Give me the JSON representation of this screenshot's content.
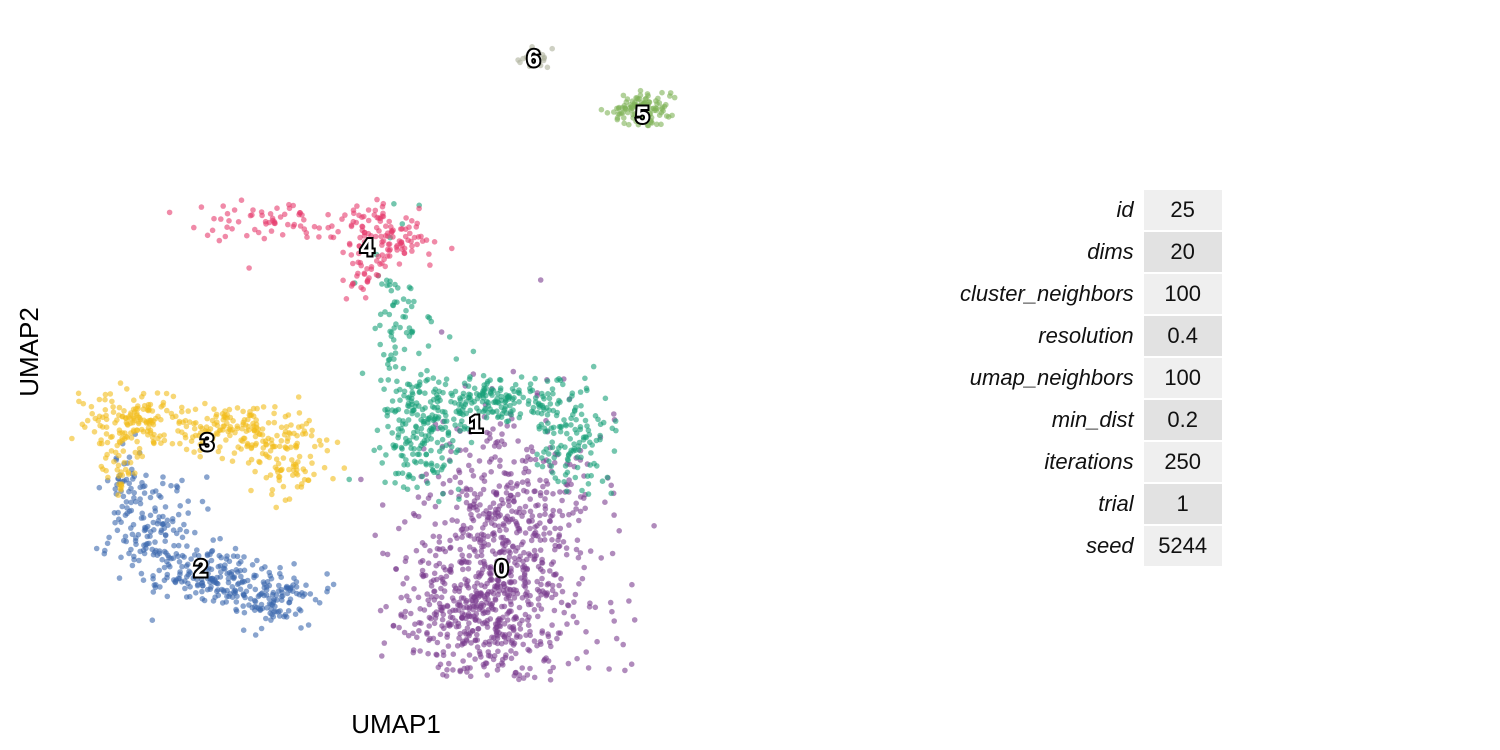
{
  "chart_data": {
    "type": "scatter",
    "xlabel": "UMAP1",
    "ylabel": "UMAP2",
    "xlim": [
      0,
      10
    ],
    "ylim": [
      0,
      10
    ],
    "grid": false,
    "clusters": [
      {
        "label": "0",
        "color": "#7B3D8F",
        "center": [
          6.9,
          1.6
        ]
      },
      {
        "label": "1",
        "color": "#17A078",
        "center": [
          6.5,
          3.9
        ]
      },
      {
        "label": "2",
        "color": "#3A68AE",
        "center": [
          2.2,
          1.6
        ]
      },
      {
        "label": "3",
        "color": "#F2BC1B",
        "center": [
          2.3,
          3.6
        ]
      },
      {
        "label": "4",
        "color": "#E63C6E",
        "center": [
          4.8,
          6.7
        ]
      },
      {
        "label": "5",
        "color": "#7EB356",
        "center": [
          9.1,
          8.8
        ]
      },
      {
        "label": "6",
        "color": "#AEB09B",
        "center": [
          7.4,
          9.7
        ]
      }
    ]
  },
  "params": [
    {
      "name": "id",
      "value": "25"
    },
    {
      "name": "dims",
      "value": "20"
    },
    {
      "name": "cluster_neighbors",
      "value": "100"
    },
    {
      "name": "resolution",
      "value": "0.4"
    },
    {
      "name": "umap_neighbors",
      "value": "100"
    },
    {
      "name": "min_dist",
      "value": "0.2"
    },
    {
      "name": "iterations",
      "value": "250"
    },
    {
      "name": "trial",
      "value": "1"
    },
    {
      "name": "seed",
      "value": "5244"
    }
  ]
}
